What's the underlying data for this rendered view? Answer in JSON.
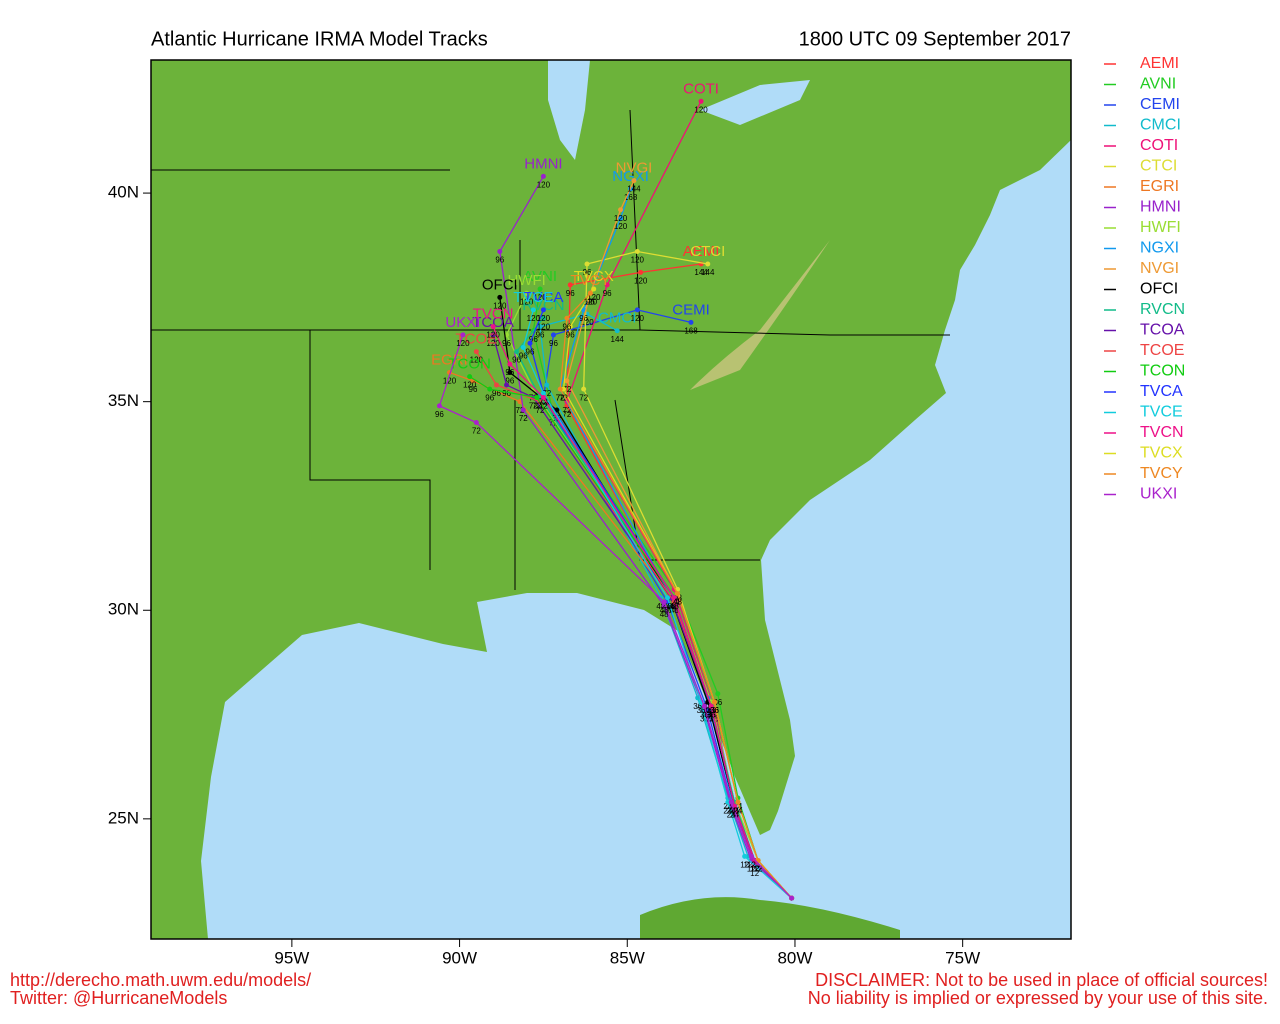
{
  "chart_data": {
    "type": "track_map",
    "title": "Atlantic Hurricane IRMA Model Tracks",
    "subtitle": "1800 UTC 09 September 2017",
    "footer_left": [
      "http://derecho.math.uwm.edu/models/",
      "Twitter: @HurricaneModels"
    ],
    "footer_right": [
      "DISCLAIMER: Not to be used in place of official sources!",
      "No liability is implied or expressed by your use of this site."
    ],
    "xlim": [
      -99.2,
      -71.77
    ],
    "ylim": [
      22.12,
      43.19
    ],
    "xticks": [
      {
        "value": -95,
        "label": "95W"
      },
      {
        "value": -90,
        "label": "90W"
      },
      {
        "value": -85,
        "label": "85W"
      },
      {
        "value": -80,
        "label": "80W"
      },
      {
        "value": -75,
        "label": "75W"
      }
    ],
    "yticks": [
      {
        "value": 25,
        "label": "25N"
      },
      {
        "value": 30,
        "label": "30N"
      },
      {
        "value": 35,
        "label": "35N"
      },
      {
        "value": 40,
        "label": "40N"
      }
    ],
    "series": [
      {
        "name": "AEMI",
        "color": "#ff3333",
        "x": [
          -80.1,
          -81.2,
          -81.8,
          -82.5,
          -83.7,
          -86.8,
          -86.7,
          -84.6,
          -82.8
        ],
        "y": [
          23.1,
          24.0,
          25.3,
          27.7,
          30.3,
          34.9,
          37.8,
          38.1,
          38.3
        ],
        "hour_labels": [
          null,
          12,
          24,
          36,
          48,
          72,
          96,
          120,
          144
        ]
      },
      {
        "name": "AVNI",
        "color": "#22cc22",
        "x": [
          -80.1,
          -81.1,
          -81.7,
          -82.3,
          -83.5,
          -87.2,
          -87.8,
          -87.6
        ],
        "y": [
          23.1,
          24.0,
          25.5,
          28.0,
          30.4,
          34.7,
          36.7,
          37.7
        ],
        "hour_labels": [
          null,
          12,
          24,
          36,
          48,
          72,
          96,
          120
        ]
      },
      {
        "name": "CEMI",
        "color": "#2244ee",
        "x": [
          -80.1,
          -81.3,
          -81.9,
          -82.6,
          -83.8,
          -87.5,
          -87.2,
          -84.7,
          -83.1
        ],
        "y": [
          23.1,
          24.1,
          25.4,
          27.6,
          30.2,
          35.1,
          36.6,
          37.2,
          36.9
        ],
        "hour_labels": [
          null,
          12,
          24,
          36,
          48,
          72,
          96,
          120,
          168
        ]
      },
      {
        "name": "CMCI",
        "color": "#11bbcc",
        "x": [
          -80.1,
          -81.4,
          -82.0,
          -82.9,
          -84.0,
          -87.4,
          -87.6,
          -86.2,
          -85.3
        ],
        "y": [
          23.1,
          24.1,
          25.5,
          27.9,
          30.3,
          35.4,
          36.8,
          37.1,
          36.7
        ],
        "hour_labels": [
          null,
          12,
          24,
          36,
          48,
          72,
          96,
          120,
          144
        ]
      },
      {
        "name": "COTI",
        "color": "#ee1177",
        "x": [
          -80.1,
          -81.2,
          -81.8,
          -82.4,
          -83.6,
          -86.8,
          -85.6,
          -82.8
        ],
        "y": [
          23.1,
          23.9,
          25.3,
          27.6,
          30.5,
          35.0,
          37.8,
          42.2
        ],
        "hour_labels": [
          null,
          12,
          24,
          36,
          48,
          72,
          96,
          120
        ]
      },
      {
        "name": "CTCI",
        "color": "#dddd33",
        "x": [
          -80.1,
          -81.1,
          -81.7,
          -82.4,
          -83.5,
          -86.3,
          -86.2,
          -84.7,
          -82.6
        ],
        "y": [
          23.1,
          24.0,
          25.4,
          27.8,
          30.5,
          35.3,
          38.3,
          38.6,
          38.3
        ],
        "hour_labels": [
          null,
          12,
          24,
          36,
          48,
          72,
          96,
          120,
          144
        ]
      },
      {
        "name": "EGRI",
        "color": "#ee7722",
        "x": [
          -80.1,
          -81.2,
          -81.8,
          -82.5,
          -83.6,
          -88.2,
          -89.6,
          -90.3
        ],
        "y": [
          23.1,
          24.0,
          25.4,
          27.7,
          30.2,
          35.0,
          35.5,
          35.7
        ],
        "hour_labels": [
          null,
          12,
          24,
          36,
          48,
          72,
          96,
          120
        ]
      },
      {
        "name": "HMNI",
        "color": "#9922cc",
        "x": [
          -80.1,
          -81.3,
          -81.9,
          -82.7,
          -83.9,
          -88.1,
          -88.8,
          -87.5
        ],
        "y": [
          23.1,
          24.0,
          25.3,
          27.6,
          30.1,
          34.8,
          38.6,
          40.4
        ],
        "hour_labels": [
          null,
          12,
          24,
          36,
          48,
          72,
          96,
          120
        ]
      },
      {
        "name": "HWFI",
        "color": "#99dd33",
        "x": [
          -80.1,
          -81.1,
          -81.8,
          -82.5,
          -83.6,
          -87.8,
          -88.6,
          -88.0
        ],
        "y": [
          23.1,
          24.0,
          25.4,
          27.8,
          30.3,
          35.3,
          36.6,
          37.6
        ],
        "hour_labels": [
          null,
          12,
          24,
          36,
          48,
          72,
          96,
          120
        ]
      },
      {
        "name": "NGXI",
        "color": "#1199ee",
        "x": [
          -80.1,
          -81.2,
          -81.9,
          -82.6,
          -83.7,
          -87.0,
          -86.3,
          -85.2,
          -84.9
        ],
        "y": [
          23.1,
          24.0,
          25.5,
          27.9,
          30.3,
          35.3,
          37.2,
          39.4,
          40.1
        ],
        "hour_labels": [
          null,
          12,
          24,
          36,
          48,
          72,
          96,
          120,
          168
        ]
      },
      {
        "name": "NVGI",
        "color": "#ee9933",
        "x": [
          -80.1,
          -81.1,
          -81.7,
          -82.4,
          -83.5,
          -86.8,
          -86.1,
          -85.2,
          -84.8
        ],
        "y": [
          23.1,
          24.0,
          25.4,
          27.8,
          30.4,
          35.5,
          37.6,
          39.6,
          40.3
        ],
        "hour_labels": [
          null,
          12,
          24,
          36,
          48,
          72,
          96,
          120,
          144
        ]
      },
      {
        "name": "OFCI",
        "color": "#000000",
        "x": [
          -80.1,
          -81.2,
          -81.8,
          -82.6,
          -83.7,
          -87.1,
          -88.5,
          -88.8
        ],
        "y": [
          23.1,
          24.0,
          25.3,
          27.8,
          30.3,
          34.8,
          35.7,
          37.5
        ],
        "hour_labels": [
          null,
          12,
          24,
          36,
          48,
          72,
          96,
          120
        ]
      },
      {
        "name": "RVCN",
        "color": "#11bb88",
        "x": [
          -80.1,
          -81.2,
          -81.8,
          -82.5,
          -83.6,
          -87.6,
          -88.3,
          -87.5
        ],
        "y": [
          23.1,
          24.0,
          25.4,
          27.7,
          30.3,
          35.1,
          36.2,
          37.0
        ],
        "hour_labels": [
          null,
          12,
          24,
          36,
          48,
          72,
          96,
          120
        ]
      },
      {
        "name": "TCOA",
        "color": "#6611aa",
        "x": [
          -80.1,
          -81.2,
          -81.8,
          -82.5,
          -83.7,
          -87.8,
          -88.6,
          -89.0
        ],
        "y": [
          23.1,
          24.0,
          25.3,
          27.7,
          30.3,
          35.1,
          35.4,
          36.6
        ],
        "hour_labels": [
          null,
          12,
          24,
          36,
          48,
          72,
          96,
          120
        ]
      },
      {
        "name": "TCOE",
        "color": "#ee4444",
        "x": [
          -80.1,
          -81.2,
          -81.8,
          -82.5,
          -83.6,
          -87.6,
          -88.9,
          -89.5
        ],
        "y": [
          23.1,
          24.0,
          25.3,
          27.7,
          30.2,
          35.0,
          35.4,
          36.2
        ],
        "hour_labels": [
          null,
          12,
          24,
          36,
          48,
          72,
          96,
          120
        ]
      },
      {
        "name": "TCON",
        "color": "#11cc11",
        "x": [
          -80.1,
          -81.2,
          -81.8,
          -82.5,
          -83.6,
          -87.7,
          -89.1,
          -89.7
        ],
        "y": [
          23.1,
          24.0,
          25.3,
          27.7,
          30.3,
          35.1,
          35.3,
          35.6
        ],
        "hour_labels": [
          null,
          12,
          24,
          36,
          48,
          72,
          96,
          120
        ]
      },
      {
        "name": "TVCA",
        "color": "#2233ff",
        "x": [
          -80.1,
          -81.2,
          -81.8,
          -82.5,
          -83.6,
          -87.5,
          -87.9,
          -87.5
        ],
        "y": [
          23.1,
          24.0,
          25.3,
          27.7,
          30.3,
          35.2,
          36.4,
          37.2
        ],
        "hour_labels": [
          null,
          12,
          24,
          36,
          48,
          72,
          96,
          120
        ]
      },
      {
        "name": "TVCE",
        "color": "#11ccdd",
        "x": [
          -80.1,
          -81.5,
          -82.0,
          -82.8,
          -83.8,
          -87.5,
          -88.1,
          -87.8
        ],
        "y": [
          23.1,
          24.1,
          25.4,
          27.8,
          30.3,
          35.2,
          36.3,
          37.2
        ],
        "hour_labels": [
          null,
          12,
          24,
          36,
          48,
          72,
          96,
          120
        ]
      },
      {
        "name": "TVCN",
        "color": "#ee1188",
        "x": [
          -80.1,
          -81.2,
          -81.8,
          -82.5,
          -83.6,
          -87.5,
          -88.5,
          -89.0
        ],
        "y": [
          23.1,
          24.0,
          25.3,
          27.7,
          30.3,
          35.1,
          35.9,
          36.8
        ],
        "hour_labels": [
          null,
          12,
          24,
          36,
          48,
          72,
          96,
          120
        ]
      },
      {
        "name": "TVCX",
        "color": "#dddd22",
        "x": [
          -80.1,
          -81.1,
          -81.7,
          -82.4,
          -83.5,
          -86.9,
          -86.7,
          -86.0
        ],
        "y": [
          23.1,
          24.0,
          25.4,
          27.8,
          30.4,
          35.3,
          36.8,
          37.7
        ],
        "hour_labels": [
          null,
          12,
          24,
          36,
          48,
          72,
          96,
          120
        ]
      },
      {
        "name": "TVCY",
        "color": "#ee8822",
        "x": [
          -80.1,
          -81.1,
          -81.7,
          -82.4,
          -83.5,
          -87.0,
          -86.8,
          -86.1
        ],
        "y": [
          23.1,
          24.0,
          25.4,
          27.8,
          30.4,
          35.3,
          37.0,
          37.6
        ],
        "hour_labels": [
          null,
          12,
          24,
          36,
          48,
          72,
          96,
          120
        ]
      },
      {
        "name": "UKXI",
        "color": "#aa22cc",
        "x": [
          -80.1,
          -81.3,
          -81.9,
          -82.7,
          -83.9,
          -89.5,
          -90.6,
          -89.9
        ],
        "y": [
          23.1,
          24.1,
          25.4,
          27.7,
          30.2,
          34.5,
          34.9,
          36.6
        ],
        "hour_labels": [
          null,
          12,
          24,
          36,
          48,
          72,
          96,
          120
        ]
      }
    ]
  }
}
